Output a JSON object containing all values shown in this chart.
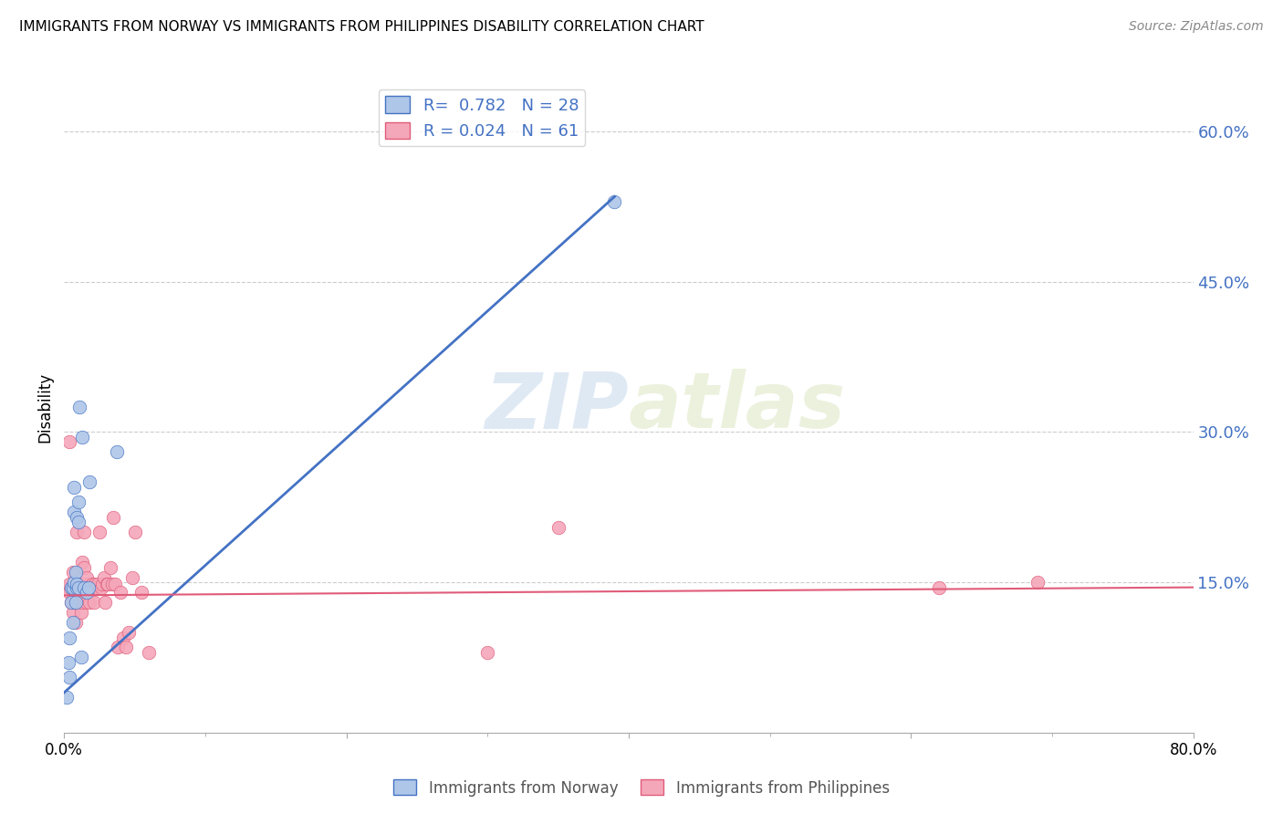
{
  "title": "IMMIGRANTS FROM NORWAY VS IMMIGRANTS FROM PHILIPPINES DISABILITY CORRELATION CHART",
  "source": "Source: ZipAtlas.com",
  "ylabel": "Disability",
  "norway_color": "#aec6e8",
  "norway_line_color": "#4472c4",
  "philippines_color": "#f4a7b9",
  "philippines_line_color": "#e05c7a",
  "norway_R": 0.782,
  "norway_N": 28,
  "philippines_R": 0.024,
  "philippines_N": 61,
  "watermark_zip": "ZIP",
  "watermark_atlas": "atlas",
  "xlim": [
    0.0,
    0.8
  ],
  "ylim": [
    0.0,
    0.65
  ],
  "yticks": [
    0.0,
    0.15,
    0.3,
    0.45,
    0.6
  ],
  "ytick_labels": [
    "",
    "15.0%",
    "30.0%",
    "45.0%",
    "60.0%"
  ],
  "xtick_major": [
    0.0,
    0.2,
    0.4,
    0.6,
    0.8
  ],
  "xtick_minor_step": 0.1,
  "xtick_major_labels": [
    "0.0%",
    "",
    "",
    "",
    "80.0%"
  ],
  "norway_x": [
    0.002,
    0.003,
    0.004,
    0.004,
    0.005,
    0.005,
    0.006,
    0.006,
    0.007,
    0.007,
    0.007,
    0.008,
    0.008,
    0.009,
    0.009,
    0.009,
    0.01,
    0.01,
    0.01,
    0.011,
    0.012,
    0.013,
    0.014,
    0.016,
    0.017,
    0.018,
    0.037,
    0.39
  ],
  "norway_y": [
    0.035,
    0.07,
    0.095,
    0.055,
    0.13,
    0.145,
    0.11,
    0.145,
    0.15,
    0.22,
    0.245,
    0.13,
    0.16,
    0.145,
    0.148,
    0.215,
    0.145,
    0.21,
    0.23,
    0.325,
    0.075,
    0.295,
    0.145,
    0.14,
    0.145,
    0.25,
    0.28,
    0.53
  ],
  "philippines_x": [
    0.003,
    0.004,
    0.004,
    0.004,
    0.005,
    0.005,
    0.006,
    0.006,
    0.006,
    0.007,
    0.007,
    0.008,
    0.008,
    0.009,
    0.009,
    0.009,
    0.01,
    0.01,
    0.011,
    0.011,
    0.012,
    0.012,
    0.013,
    0.013,
    0.014,
    0.014,
    0.015,
    0.016,
    0.016,
    0.017,
    0.018,
    0.019,
    0.02,
    0.021,
    0.022,
    0.023,
    0.024,
    0.025,
    0.026,
    0.027,
    0.028,
    0.029,
    0.03,
    0.031,
    0.033,
    0.034,
    0.035,
    0.036,
    0.038,
    0.04,
    0.042,
    0.044,
    0.046,
    0.048,
    0.05,
    0.055,
    0.06,
    0.3,
    0.35,
    0.62,
    0.69
  ],
  "philippines_y": [
    0.145,
    0.14,
    0.148,
    0.29,
    0.13,
    0.145,
    0.12,
    0.145,
    0.16,
    0.13,
    0.145,
    0.11,
    0.13,
    0.13,
    0.145,
    0.2,
    0.14,
    0.148,
    0.13,
    0.145,
    0.12,
    0.145,
    0.13,
    0.17,
    0.165,
    0.2,
    0.148,
    0.13,
    0.155,
    0.145,
    0.13,
    0.145,
    0.148,
    0.13,
    0.148,
    0.145,
    0.148,
    0.2,
    0.145,
    0.148,
    0.155,
    0.13,
    0.148,
    0.148,
    0.165,
    0.148,
    0.215,
    0.148,
    0.085,
    0.14,
    0.095,
    0.085,
    0.1,
    0.155,
    0.2,
    0.14,
    0.08,
    0.08,
    0.205,
    0.145,
    0.15
  ],
  "norway_trend_x": [
    0.0,
    0.39
  ],
  "norway_trend_y_start": 0.04,
  "norway_trend_y_end": 0.535,
  "philippines_trend_x": [
    0.0,
    0.8
  ],
  "philippines_trend_y_start": 0.137,
  "philippines_trend_y_end": 0.145
}
